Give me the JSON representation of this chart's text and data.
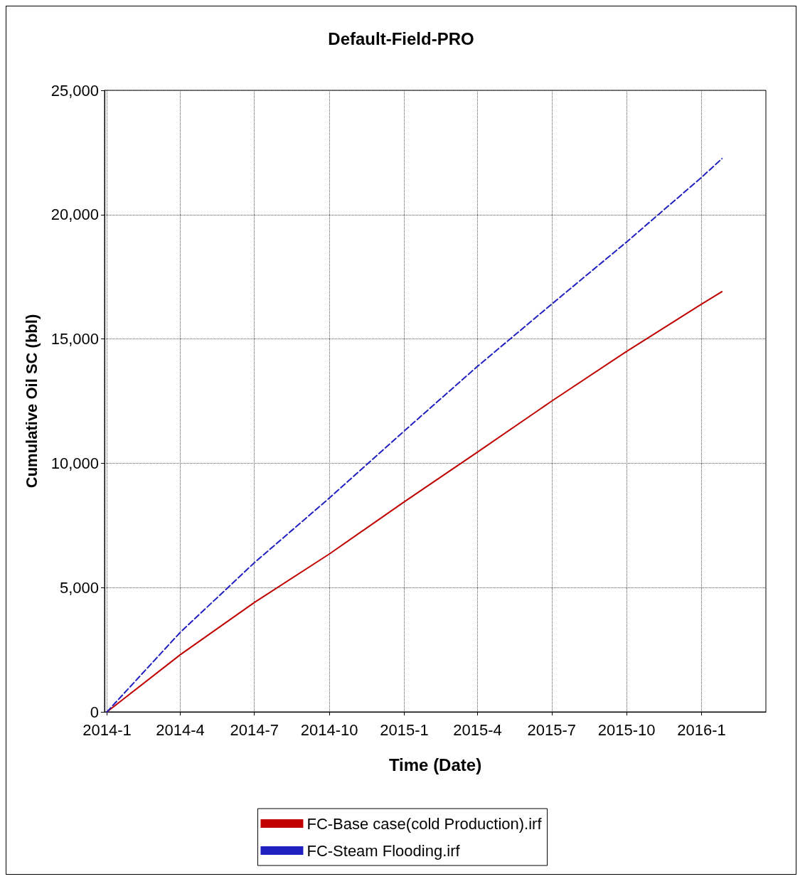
{
  "chart_data": {
    "type": "line",
    "title": "Default-Field-PRO",
    "xlabel": "Time (Date)",
    "ylabel": "Cumulative Oil SC (bbl)",
    "x": [
      "2014-01-01",
      "2014-04-01",
      "2014-07-01",
      "2014-10-01",
      "2015-01-01",
      "2015-04-01",
      "2015-07-01",
      "2015-10-01",
      "2016-01-01",
      "2016-01-26"
    ],
    "series": [
      {
        "name": "FC-Base case(cold Production).irf",
        "color": "#c00000",
        "line_style": "solid",
        "values": [
          0,
          2300,
          4400,
          6350,
          8450,
          10450,
          12500,
          14500,
          16400,
          16900
        ]
      },
      {
        "name": "FC-Steam Flooding.irf",
        "color": "#2020c0",
        "line_style": "dashed",
        "values": [
          0,
          3200,
          6000,
          8600,
          11300,
          13900,
          16400,
          18900,
          21500,
          22250
        ]
      }
    ],
    "xlim": [
      "2013-12-29",
      "2016-03-20"
    ],
    "xticks": [
      {
        "value": "2014-01-01",
        "label": "2014-1"
      },
      {
        "value": "2014-04-01",
        "label": "2014-4"
      },
      {
        "value": "2014-07-01",
        "label": "2014-7"
      },
      {
        "value": "2014-10-01",
        "label": "2014-10"
      },
      {
        "value": "2015-01-01",
        "label": "2015-1"
      },
      {
        "value": "2015-04-01",
        "label": "2015-4"
      },
      {
        "value": "2015-07-01",
        "label": "2015-7"
      },
      {
        "value": "2015-10-01",
        "label": "2015-10"
      },
      {
        "value": "2016-01-01",
        "label": "2016-1"
      }
    ],
    "ylim": [
      0,
      25000
    ],
    "yticks": [
      0,
      {
        "value": 5000,
        "label": "5,000"
      },
      {
        "value": 10000,
        "label": "10,000"
      },
      {
        "value": 15000,
        "label": "15,000"
      },
      {
        "value": 20000,
        "label": "20,000"
      },
      {
        "value": 25000,
        "label": "25,000"
      }
    ],
    "grid": true,
    "legend": "bottom",
    "marker": "none"
  }
}
